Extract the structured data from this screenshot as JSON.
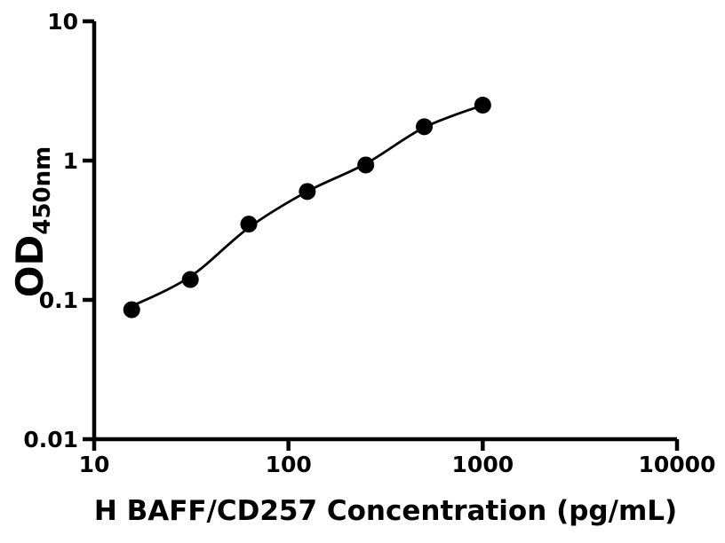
{
  "chart_data": {
    "type": "scatter",
    "title": "",
    "xlabel": "H BAFF/CD257 Concentration (pg/mL)",
    "ylabel": "OD450nm",
    "ylabel_main": "OD",
    "ylabel_sub": "450nm",
    "x_scale": "log",
    "y_scale": "log",
    "xlim": [
      10,
      10000
    ],
    "ylim": [
      0.01,
      10
    ],
    "x_ticks": [
      10,
      100,
      1000,
      10000
    ],
    "x_tick_labels": [
      "10",
      "100",
      "1000",
      "10000"
    ],
    "y_ticks": [
      0.01,
      0.1,
      1,
      10
    ],
    "y_tick_labels": [
      "0.01",
      "0.1",
      "1",
      "10"
    ],
    "grid": false,
    "legend": false,
    "background_color": "#ffffff",
    "axis_color": "#000000",
    "marker_color": "#000000",
    "curve_color": "#000000",
    "series": [
      {
        "name": "standard-points",
        "marker": "circle",
        "x": [
          15.6,
          31.25,
          62.5,
          125,
          250,
          500,
          1000
        ],
        "y": [
          0.085,
          0.14,
          0.35,
          0.6,
          0.93,
          1.75,
          2.5
        ]
      }
    ],
    "fit_curve": {
      "name": "4pl-fit-curve",
      "x": [
        15.6,
        31.25,
        62.5,
        125,
        250,
        500,
        1000
      ],
      "y": [
        0.09,
        0.147,
        0.33,
        0.6,
        0.95,
        1.73,
        2.5
      ]
    }
  }
}
